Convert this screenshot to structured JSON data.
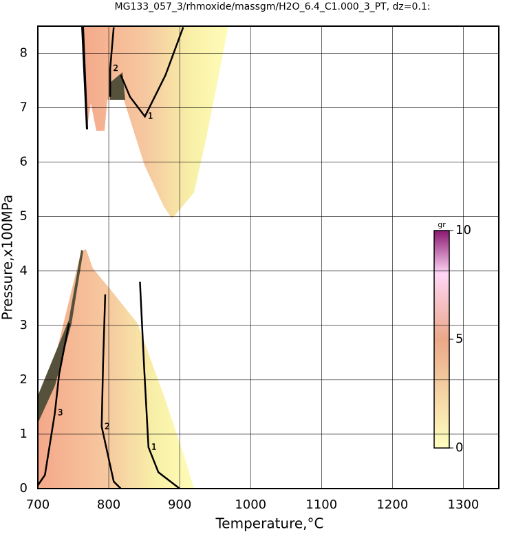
{
  "chart_data": {
    "type": "contour",
    "title": "MG133_057_3/rhmoxide/massgm/H2O_6.4_C1.000_3_PT, dz=0.1:",
    "x_label": "Temperature,°C",
    "y_label": "Pressure,x100MPa",
    "xlim": [
      700,
      1350
    ],
    "ylim": [
      0,
      8.5
    ],
    "xticks": [
      700,
      800,
      900,
      1000,
      1100,
      1200,
      1300
    ],
    "yticks": [
      0,
      1,
      2,
      3,
      4,
      5,
      6,
      7,
      8
    ],
    "grid": true,
    "colorbar": {
      "label": "gr",
      "lim": [
        0,
        10
      ],
      "ticks": [
        0,
        5,
        10
      ]
    },
    "contours": [
      {
        "level": 1,
        "x": [
          844,
          850,
          856,
          870,
          900
        ],
        "y": [
          3.8,
          2.2,
          0.76,
          0.3,
          0
        ]
      },
      {
        "level": 2,
        "x": [
          795,
          792,
          790,
          807,
          817
        ],
        "y": [
          3.57,
          2.3,
          1.14,
          0.13,
          0
        ]
      },
      {
        "level": 3,
        "x": [
          744,
          730,
          724,
          710,
          700
        ],
        "y": [
          3.04,
          2.1,
          1.39,
          0.25,
          0.06
        ]
      },
      {
        "level": 1,
        "x": [
          905,
          880,
          851,
          830,
          817
        ],
        "y": [
          8.48,
          7.6,
          6.84,
          7.2,
          7.6
        ]
      },
      {
        "level": 2,
        "x": [
          807,
          802,
          802
        ],
        "y": [
          8.48,
          7.72,
          7.2
        ]
      }
    ]
  }
}
